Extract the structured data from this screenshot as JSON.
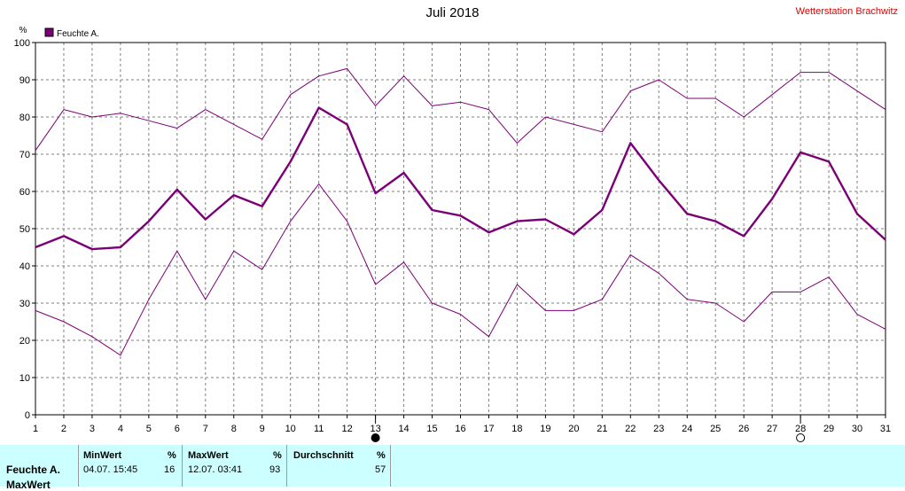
{
  "title": "Juli 2018",
  "station": "Wetterstation Brachwitz",
  "chart_data": {
    "type": "line",
    "ylabel": "%",
    "ylim": [
      0,
      100
    ],
    "yticks": [
      0,
      10,
      20,
      30,
      40,
      50,
      60,
      70,
      80,
      90,
      100
    ],
    "x": [
      1,
      2,
      3,
      4,
      5,
      6,
      7,
      8,
      9,
      10,
      11,
      12,
      13,
      14,
      15,
      16,
      17,
      18,
      19,
      20,
      21,
      22,
      23,
      24,
      25,
      26,
      27,
      28,
      29,
      30,
      31
    ],
    "grid": true,
    "legend": {
      "position": "top-left",
      "color": "#7b0077"
    },
    "series": [
      {
        "name": "Feuchte A.",
        "role": "mean",
        "color": "#7b0077",
        "values": [
          45,
          48,
          44.5,
          45,
          52,
          60.5,
          52.5,
          59,
          56,
          68,
          82.5,
          78,
          59.5,
          65,
          55,
          53.5,
          49,
          52,
          52.5,
          48.5,
          55,
          73,
          63,
          54,
          52,
          48,
          58,
          70.5,
          68,
          54,
          47
        ]
      },
      {
        "role": "max",
        "color": "#7b0077",
        "values": [
          71,
          82,
          80,
          81,
          79,
          77,
          82,
          78,
          74,
          86,
          91,
          93,
          83,
          91,
          83,
          84,
          82,
          73,
          80,
          78,
          76,
          87,
          90,
          85,
          85,
          80,
          86,
          92,
          92,
          87,
          82
        ]
      },
      {
        "role": "min",
        "color": "#7b0077",
        "values": [
          28,
          25,
          21,
          16,
          31,
          44,
          31,
          44,
          39,
          52,
          62,
          52,
          35,
          41,
          30,
          27,
          21,
          35,
          28,
          28,
          31,
          43,
          38,
          31,
          30,
          25,
          33,
          33,
          37,
          27,
          23
        ]
      }
    ],
    "moon_markers": [
      {
        "day": 13,
        "phase": "new"
      },
      {
        "day": 28,
        "phase": "full"
      }
    ]
  },
  "stats": {
    "row_labels": [
      "Feuchte A.",
      "MaxWert"
    ],
    "minwert": {
      "header": "MinWert",
      "unit": "%",
      "time": "04.07.  15:45",
      "value": "16"
    },
    "maxwert": {
      "header": "MaxWert",
      "unit": "%",
      "time": "12.07.  03:41",
      "value": "93"
    },
    "durchschnitt": {
      "header": "Durchschnitt",
      "unit": "%",
      "value": "57"
    }
  }
}
